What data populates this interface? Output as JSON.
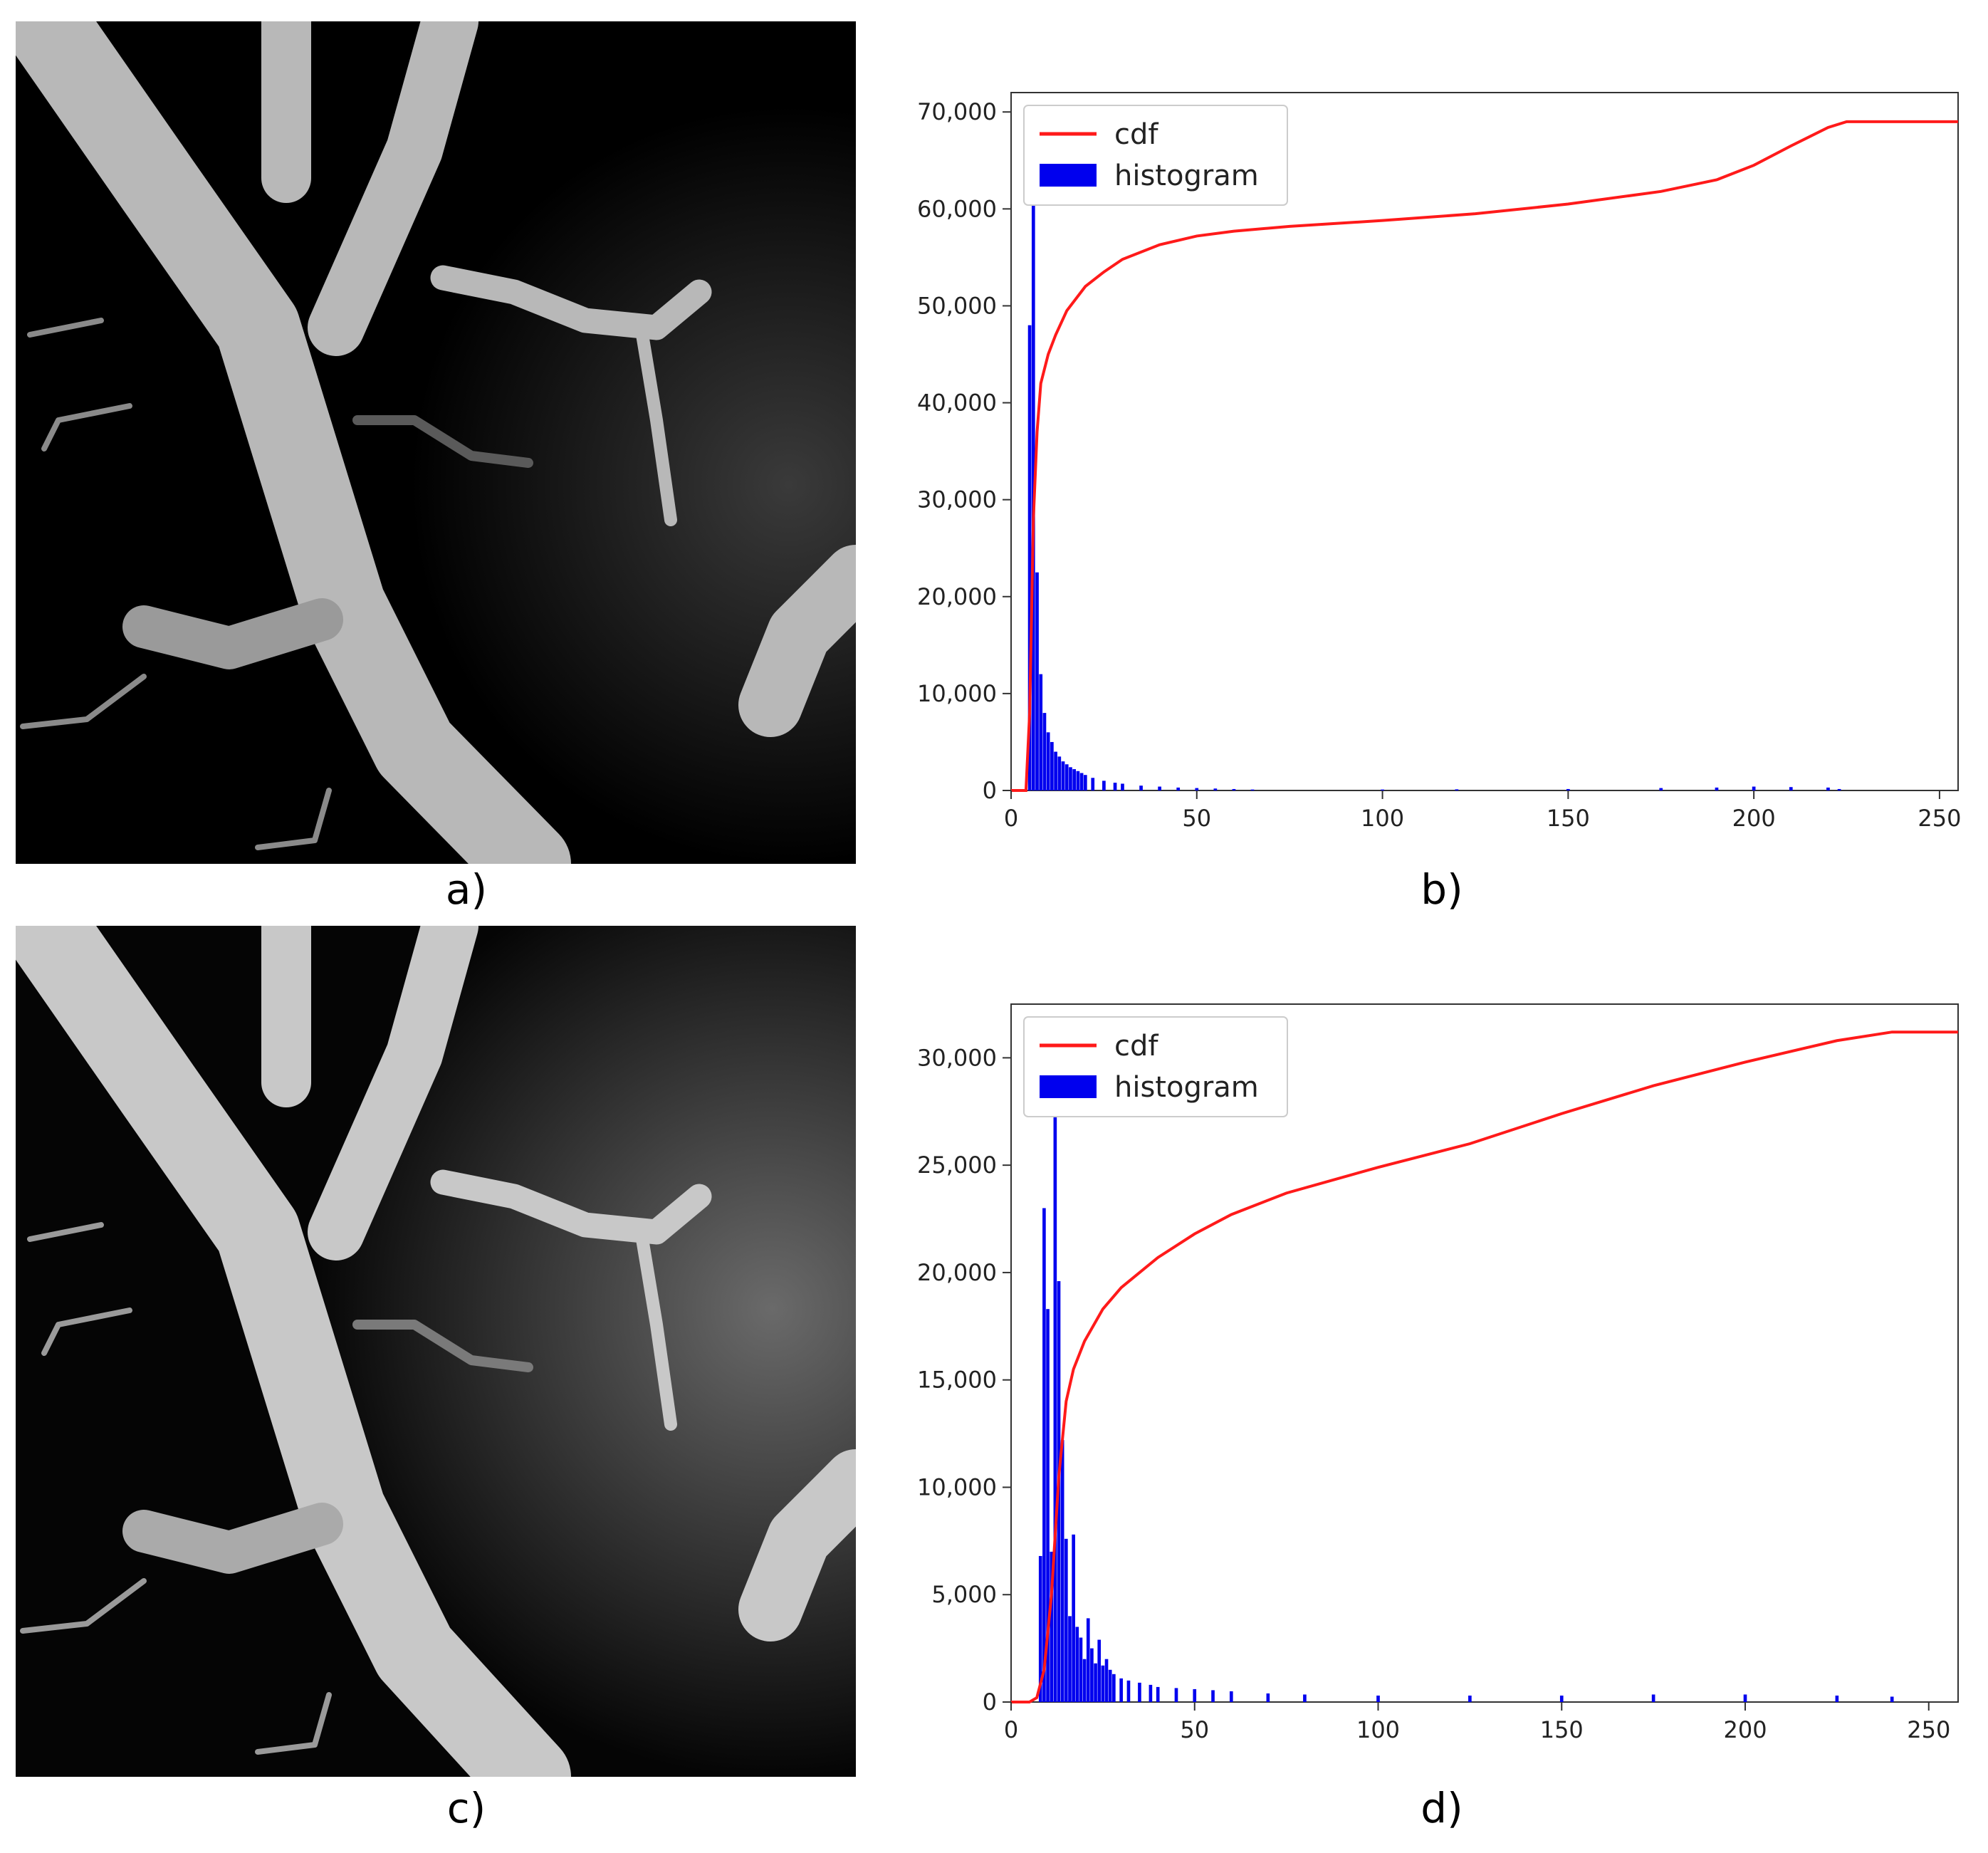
{
  "panels": {
    "a": {
      "caption": "a)"
    },
    "b": {
      "caption": "b)"
    },
    "c": {
      "caption": "c)"
    },
    "d": {
      "caption": "d)"
    }
  },
  "colors": {
    "cdf": "#ff1a1a",
    "histogram": "#0000ee"
  },
  "chart_data": [
    {
      "id": "b",
      "type": "bar",
      "xlim": [
        0,
        255
      ],
      "ylim": [
        0,
        72000
      ],
      "x_ticks": [
        0,
        50,
        100,
        150,
        200,
        250
      ],
      "x_tick_labels": [
        "0",
        "50",
        "100",
        "150",
        "200",
        "250"
      ],
      "y_ticks": [
        0,
        10000,
        20000,
        30000,
        40000,
        50000,
        60000,
        70000
      ],
      "y_tick_labels": [
        "0",
        "10,000",
        "20,000",
        "30,000",
        "40,000",
        "50,000",
        "60,000",
        "70,000"
      ],
      "legend": {
        "position": "top-left",
        "entries": [
          "cdf",
          "histogram"
        ]
      },
      "series": [
        {
          "name": "cdf",
          "kind": "line",
          "x": [
            0,
            4,
            5,
            6,
            7,
            8,
            10,
            12,
            15,
            20,
            25,
            30,
            40,
            50,
            60,
            75,
            100,
            125,
            150,
            175,
            190,
            200,
            210,
            220,
            225,
            240,
            255
          ],
          "values": [
            0,
            0,
            8000,
            28000,
            37000,
            42000,
            45000,
            47000,
            49500,
            52000,
            53500,
            54800,
            56300,
            57200,
            57700,
            58200,
            58800,
            59500,
            60500,
            61800,
            63000,
            64500,
            66500,
            68400,
            69000,
            69000,
            69000
          ]
        },
        {
          "name": "histogram",
          "kind": "bar",
          "x": [
            5,
            6,
            7,
            8,
            9,
            10,
            11,
            12,
            13,
            14,
            15,
            16,
            17,
            18,
            19,
            20,
            22,
            25,
            28,
            30,
            35,
            40,
            45,
            50,
            55,
            60,
            65,
            100,
            120,
            150,
            175,
            190,
            200,
            210,
            220,
            223
          ],
          "values": [
            48000,
            68000,
            22500,
            12000,
            8000,
            6000,
            5000,
            4000,
            3500,
            3000,
            2700,
            2400,
            2200,
            2000,
            1800,
            1600,
            1300,
            1000,
            800,
            700,
            500,
            400,
            300,
            250,
            200,
            150,
            100,
            100,
            120,
            150,
            250,
            300,
            400,
            350,
            300,
            150
          ]
        }
      ]
    },
    {
      "id": "d",
      "type": "bar",
      "xlim": [
        0,
        258
      ],
      "ylim": [
        0,
        32500
      ],
      "x_ticks": [
        0,
        50,
        100,
        150,
        200,
        250
      ],
      "x_tick_labels": [
        "0",
        "50",
        "100",
        "150",
        "200",
        "250"
      ],
      "y_ticks": [
        0,
        5000,
        10000,
        15000,
        20000,
        25000,
        30000
      ],
      "y_tick_labels": [
        "0",
        "5,000",
        "10,000",
        "15,000",
        "20,000",
        "25,000",
        "30,000"
      ],
      "legend": {
        "position": "top-left",
        "entries": [
          "cdf",
          "histogram"
        ]
      },
      "series": [
        {
          "name": "cdf",
          "kind": "line",
          "x": [
            0,
            5,
            7,
            9,
            11,
            13,
            15,
            17,
            20,
            25,
            30,
            40,
            50,
            60,
            75,
            100,
            125,
            150,
            175,
            200,
            225,
            240,
            245,
            258
          ],
          "values": [
            0,
            0,
            200,
            1500,
            5000,
            10500,
            14000,
            15500,
            16800,
            18300,
            19300,
            20700,
            21800,
            22700,
            23700,
            24900,
            26000,
            27400,
            28700,
            29800,
            30800,
            31200,
            31200,
            31200
          ]
        },
        {
          "name": "histogram",
          "kind": "bar",
          "x": [
            8,
            9,
            10,
            11,
            12,
            13,
            14,
            15,
            16,
            17,
            18,
            19,
            20,
            21,
            22,
            23,
            24,
            25,
            26,
            27,
            28,
            30,
            32,
            35,
            38,
            40,
            45,
            50,
            55,
            60,
            70,
            80,
            100,
            125,
            150,
            175,
            200,
            225,
            240
          ],
          "values": [
            6800,
            23000,
            18300,
            7000,
            30500,
            19600,
            12200,
            7600,
            4000,
            7800,
            3500,
            3000,
            2000,
            3900,
            2500,
            1800,
            2900,
            1700,
            2000,
            1500,
            1300,
            1100,
            1000,
            900,
            800,
            700,
            650,
            600,
            550,
            500,
            400,
            350,
            300,
            300,
            300,
            350,
            350,
            300,
            250
          ]
        }
      ]
    }
  ]
}
